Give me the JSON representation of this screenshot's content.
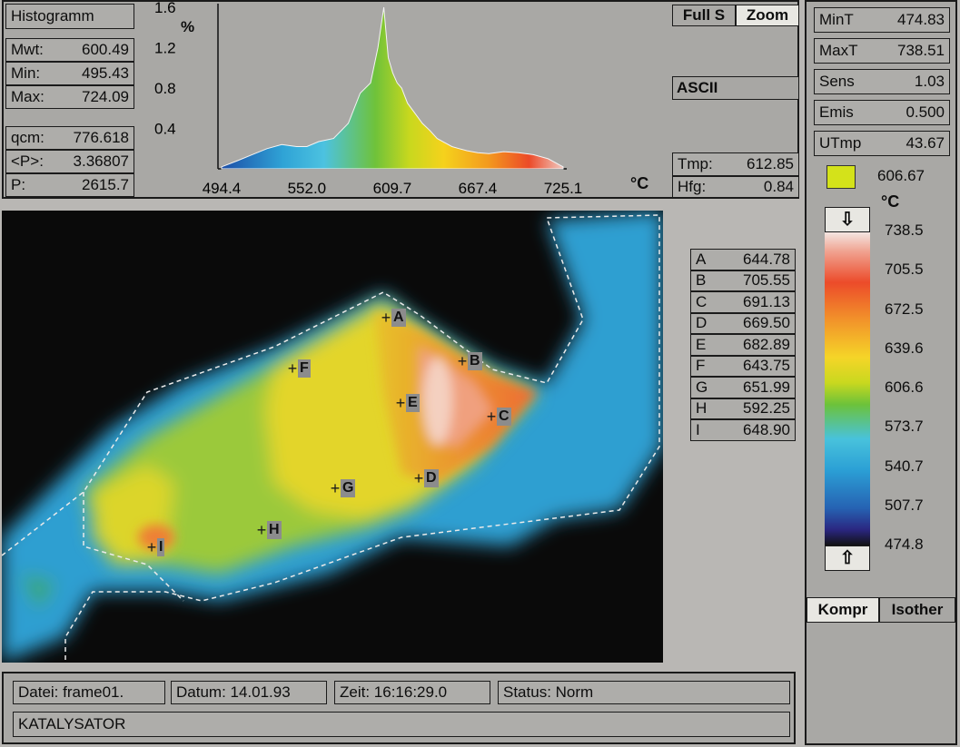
{
  "histogram": {
    "title": "Histogramm",
    "stats": [
      {
        "key": "Mwt:",
        "value": "600.49"
      },
      {
        "key": "Min:",
        "value": "495.43"
      },
      {
        "key": "Max:",
        "value": "724.09"
      }
    ],
    "stats2": [
      {
        "key": "qcm:",
        "value": "776.618"
      },
      {
        "key": "<P>:",
        "value": "3.36807"
      },
      {
        "key": "P:",
        "value": "2615.7"
      }
    ],
    "ylabel": "%",
    "yticks": [
      "1.6",
      "1.2",
      "0.8",
      "0.4"
    ],
    "xticks": [
      "494.4",
      "552.0",
      "609.7",
      "667.4",
      "725.1"
    ],
    "xunit": "°C",
    "buttons": {
      "full": "Full S",
      "zoom": "Zoom",
      "ascii": "ASCII"
    },
    "tmp": {
      "key": "Tmp:",
      "value": "612.85"
    },
    "hfg": {
      "key": "Hfg:",
      "value": "0.84"
    }
  },
  "chart_data": {
    "type": "area",
    "xlabel": "°C",
    "ylabel": "%",
    "xlim": [
      494.4,
      725.1
    ],
    "ylim": [
      0,
      1.6
    ],
    "x": [
      494.4,
      505,
      515,
      525,
      535,
      545,
      552,
      560,
      570,
      580,
      588,
      595,
      600,
      604,
      607,
      610,
      613,
      616,
      620,
      625,
      630,
      635,
      640,
      645,
      650,
      655,
      660,
      667.4,
      675,
      685,
      695,
      705,
      715,
      725.1
    ],
    "y": [
      0.02,
      0.08,
      0.14,
      0.2,
      0.24,
      0.22,
      0.22,
      0.27,
      0.3,
      0.45,
      0.75,
      0.85,
      1.2,
      1.6,
      1.1,
      0.95,
      0.85,
      0.8,
      0.65,
      0.55,
      0.45,
      0.38,
      0.3,
      0.26,
      0.22,
      0.2,
      0.18,
      0.16,
      0.15,
      0.17,
      0.16,
      0.14,
      0.1,
      0.02
    ]
  },
  "markers": [
    {
      "id": "A",
      "value": "644.78"
    },
    {
      "id": "B",
      "value": "705.55"
    },
    {
      "id": "C",
      "value": "691.13"
    },
    {
      "id": "D",
      "value": "669.50"
    },
    {
      "id": "E",
      "value": "682.89"
    },
    {
      "id": "F",
      "value": "643.75"
    },
    {
      "id": "G",
      "value": "651.99"
    },
    {
      "id": "H",
      "value": "592.25"
    },
    {
      "id": "I",
      "value": "648.90"
    }
  ],
  "sidebar": {
    "mint": {
      "key": "MinT",
      "value": "474.83"
    },
    "maxt": {
      "key": "MaxT",
      "value": "738.51"
    },
    "sens": {
      "key": "Sens",
      "value": "1.03"
    },
    "emis": {
      "key": "Emis",
      "value": "0.500"
    },
    "utmp": {
      "key": "UTmp",
      "value": "43.67"
    },
    "cursor_value": "606.67",
    "cursor_color": "#d4e21a",
    "unit": "°C",
    "scale": [
      "738.5",
      "705.5",
      "672.5",
      "639.6",
      "606.6",
      "573.7",
      "540.7",
      "507.7",
      "474.8"
    ],
    "buttons": {
      "kompr": "Kompr",
      "isother": "Isother"
    }
  },
  "status": {
    "datei": "Datei: frame01.",
    "datum": "Datum: 14.01.93",
    "zeit": "Zeit: 16:16:29.0",
    "status": "Status: Norm",
    "name": "KATALYSATOR"
  }
}
